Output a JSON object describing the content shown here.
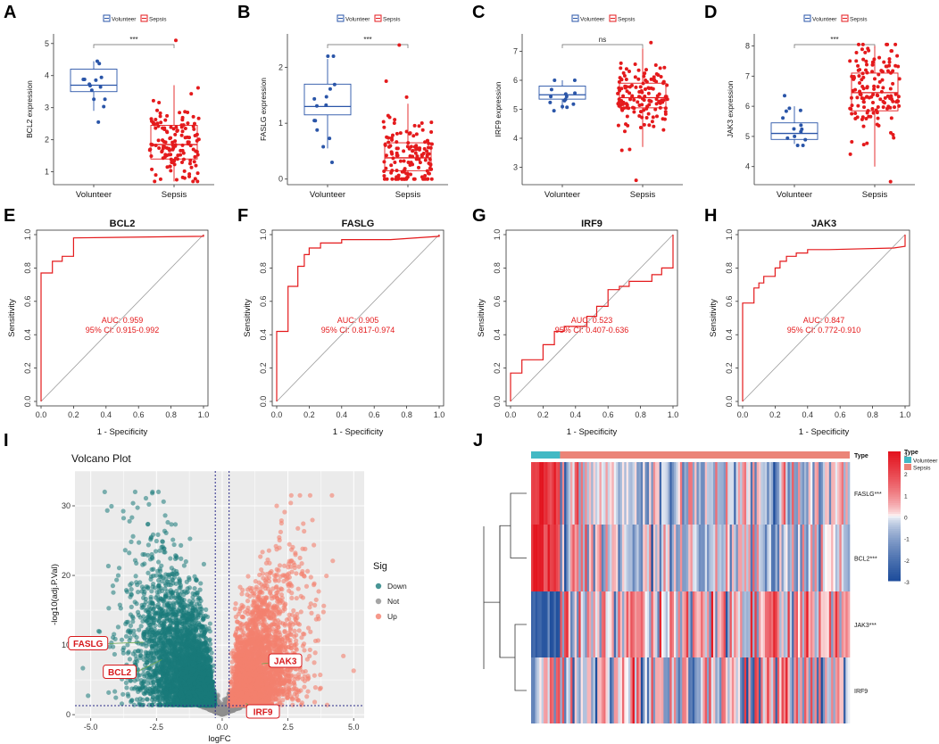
{
  "colors": {
    "volunteer": "#2a55a8",
    "sepsis": "#e41a1c",
    "roc": "#e41a1c",
    "down": "#1a7a7a",
    "not": "#8f8f8f",
    "up": "#f4806e",
    "heat_low": "#1f4e9c",
    "heat_mid": "#ffffff",
    "heat_high": "#e3141f",
    "type_volunteer": "#42b9c4",
    "type_sepsis": "#eb8478"
  },
  "chart_data": [
    {
      "panel": "A",
      "type": "box",
      "ylabel": "BCL2 expression",
      "categories": [
        "Volunteer",
        "Sepsis"
      ],
      "legend": [
        "Volunteer",
        "Sepsis"
      ],
      "ylim": [
        0.6,
        5.3
      ],
      "yticks": [
        1,
        2,
        3,
        4,
        5
      ],
      "yticklabels": [
        "1",
        "2",
        "3",
        "4",
        "5"
      ],
      "significance": "***",
      "boxes": [
        {
          "q1": 3.5,
          "median": 3.7,
          "q3": 4.2,
          "low": 2.9,
          "high": 4.45,
          "n": 14,
          "center": 3.75,
          "spread": 0.45,
          "min": 2.55,
          "max": 4.45
        },
        {
          "q1": 1.4,
          "median": 1.85,
          "q3": 2.45,
          "low": 0.7,
          "high": 3.7,
          "n": 140,
          "center": 1.9,
          "spread": 0.65,
          "min": 0.7,
          "max": 5.1
        }
      ]
    },
    {
      "panel": "B",
      "type": "box",
      "ylabel": "FASLG expression",
      "categories": [
        "Volunteer",
        "Sepsis"
      ],
      "legend": [
        "Volunteer",
        "Sepsis"
      ],
      "ylim": [
        -0.1,
        2.6
      ],
      "yticks": [
        0,
        1,
        2
      ],
      "yticklabels": [
        "0",
        "1",
        "2"
      ],
      "significance": "***",
      "boxes": [
        {
          "q1": 1.15,
          "median": 1.3,
          "q3": 1.7,
          "low": 0.55,
          "high": 2.15,
          "n": 14,
          "center": 1.35,
          "spread": 0.45,
          "min": 0.3,
          "max": 2.2
        },
        {
          "q1": 0.15,
          "median": 0.38,
          "q3": 0.65,
          "low": 0.0,
          "high": 1.35,
          "n": 140,
          "center": 0.42,
          "spread": 0.35,
          "min": 0.0,
          "max": 2.4
        }
      ]
    },
    {
      "panel": "C",
      "type": "box",
      "ylabel": "IRF9 expression",
      "categories": [
        "Volunteer",
        "Sepsis"
      ],
      "legend": [
        "Volunteer",
        "Sepsis"
      ],
      "ylim": [
        2.4,
        7.6
      ],
      "yticks": [
        3,
        4,
        5,
        6,
        7
      ],
      "yticklabels": [
        "3",
        "4",
        "5",
        "6",
        "7"
      ],
      "significance": "ns",
      "boxes": [
        {
          "q1": 5.35,
          "median": 5.5,
          "q3": 5.8,
          "low": 5.0,
          "high": 6.0,
          "n": 14,
          "center": 5.5,
          "spread": 0.3,
          "min": 4.95,
          "max": 6.0
        },
        {
          "q1": 5.05,
          "median": 5.4,
          "q3": 5.9,
          "low": 3.7,
          "high": 7.1,
          "n": 140,
          "center": 5.45,
          "spread": 0.55,
          "min": 2.55,
          "max": 7.3
        }
      ]
    },
    {
      "panel": "D",
      "type": "box",
      "ylabel": "JAK3 expression",
      "categories": [
        "Volunteer",
        "Sepsis"
      ],
      "legend": [
        "Volunteer",
        "Sepsis"
      ],
      "ylim": [
        3.4,
        8.4
      ],
      "yticks": [
        4,
        5,
        6,
        7,
        8
      ],
      "yticklabels": [
        "4",
        "5",
        "6",
        "7",
        "8"
      ],
      "significance": "***",
      "boxes": [
        {
          "q1": 4.9,
          "median": 5.1,
          "q3": 5.45,
          "low": 4.75,
          "high": 6.0,
          "n": 14,
          "center": 5.2,
          "spread": 0.45,
          "min": 4.7,
          "max": 6.35
        },
        {
          "q1": 5.85,
          "median": 6.45,
          "q3": 7.1,
          "low": 4.0,
          "high": 8.0,
          "n": 140,
          "center": 6.45,
          "spread": 0.9,
          "min": 3.5,
          "max": 8.05
        }
      ]
    },
    {
      "panel": "E",
      "type": "roc",
      "title": "BCL2",
      "xlabel": "1 - Specificity",
      "ylabel": "Sensitivity",
      "auc_text": "AUC: 0.959",
      "ci_text": "95% CI: 0.915-0.992",
      "ticks": [
        "0.0",
        "0.2",
        "0.4",
        "0.6",
        "0.8",
        "1.0"
      ],
      "curve": [
        [
          0,
          0
        ],
        [
          0,
          0.77
        ],
        [
          0.07,
          0.77
        ],
        [
          0.07,
          0.84
        ],
        [
          0.13,
          0.84
        ],
        [
          0.13,
          0.87
        ],
        [
          0.2,
          0.87
        ],
        [
          0.2,
          0.98
        ],
        [
          1,
          0.99
        ],
        [
          1,
          1
        ]
      ]
    },
    {
      "panel": "F",
      "type": "roc",
      "title": "FASLG",
      "xlabel": "1 - Specificity",
      "ylabel": "Sensitivity",
      "auc_text": "AUC: 0.905",
      "ci_text": "95% CI: 0.817-0.974",
      "ticks": [
        "0.0",
        "0.2",
        "0.4",
        "0.6",
        "0.8",
        "1.0"
      ],
      "curve": [
        [
          0,
          0
        ],
        [
          0,
          0.42
        ],
        [
          0.07,
          0.42
        ],
        [
          0.07,
          0.69
        ],
        [
          0.13,
          0.69
        ],
        [
          0.13,
          0.81
        ],
        [
          0.17,
          0.81
        ],
        [
          0.17,
          0.88
        ],
        [
          0.2,
          0.88
        ],
        [
          0.2,
          0.92
        ],
        [
          0.27,
          0.92
        ],
        [
          0.27,
          0.95
        ],
        [
          0.4,
          0.95
        ],
        [
          0.4,
          0.97
        ],
        [
          0.7,
          0.97
        ],
        [
          1,
          0.99
        ],
        [
          1,
          1
        ]
      ]
    },
    {
      "panel": "G",
      "type": "roc",
      "title": "IRF9",
      "xlabel": "1 - Specificity",
      "ylabel": "Sensitivity",
      "auc_text": "AUC: 0.523",
      "ci_text": "95% CI: 0.407-0.636",
      "ticks": [
        "0.0",
        "0.2",
        "0.4",
        "0.6",
        "0.8",
        "1.0"
      ],
      "curve": [
        [
          0,
          0
        ],
        [
          0,
          0.17
        ],
        [
          0.07,
          0.17
        ],
        [
          0.07,
          0.25
        ],
        [
          0.2,
          0.25
        ],
        [
          0.2,
          0.34
        ],
        [
          0.27,
          0.34
        ],
        [
          0.27,
          0.42
        ],
        [
          0.33,
          0.42
        ],
        [
          0.33,
          0.45
        ],
        [
          0.47,
          0.45
        ],
        [
          0.47,
          0.51
        ],
        [
          0.53,
          0.51
        ],
        [
          0.53,
          0.57
        ],
        [
          0.6,
          0.57
        ],
        [
          0.6,
          0.67
        ],
        [
          0.67,
          0.67
        ],
        [
          0.67,
          0.69
        ],
        [
          0.73,
          0.69
        ],
        [
          0.73,
          0.72
        ],
        [
          0.87,
          0.72
        ],
        [
          0.87,
          0.76
        ],
        [
          0.93,
          0.76
        ],
        [
          0.93,
          0.8
        ],
        [
          1,
          0.8
        ],
        [
          1,
          1
        ]
      ]
    },
    {
      "panel": "H",
      "type": "roc",
      "title": "JAK3",
      "xlabel": "1 - Specificity",
      "ylabel": "Sensitivity",
      "auc_text": "AUC: 0.847",
      "ci_text": "95% CI: 0.772-0.910",
      "ticks": [
        "0.0",
        "0.2",
        "0.4",
        "0.6",
        "0.8",
        "1.0"
      ],
      "curve": [
        [
          0,
          0
        ],
        [
          0,
          0.59
        ],
        [
          0.07,
          0.59
        ],
        [
          0.07,
          0.68
        ],
        [
          0.1,
          0.68
        ],
        [
          0.1,
          0.71
        ],
        [
          0.13,
          0.71
        ],
        [
          0.13,
          0.75
        ],
        [
          0.2,
          0.75
        ],
        [
          0.2,
          0.8
        ],
        [
          0.23,
          0.8
        ],
        [
          0.23,
          0.84
        ],
        [
          0.27,
          0.84
        ],
        [
          0.27,
          0.87
        ],
        [
          0.33,
          0.87
        ],
        [
          0.33,
          0.89
        ],
        [
          0.4,
          0.89
        ],
        [
          0.4,
          0.91
        ],
        [
          0.53,
          0.91
        ],
        [
          0.93,
          0.92
        ],
        [
          1,
          0.93
        ],
        [
          1,
          1
        ]
      ]
    },
    {
      "panel": "I",
      "type": "scatter",
      "title": "Volcano Plot",
      "xlabel": "logFC",
      "ylabel": "-log10(adj.P.Val)",
      "xlim": [
        -5.6,
        5.4
      ],
      "ylim": [
        -0.5,
        35
      ],
      "xticks": [
        -5,
        -2.5,
        0,
        2.5,
        5
      ],
      "xticklabels": [
        "-5.0",
        "-2.5",
        "0.0",
        "2.5",
        "5.0"
      ],
      "yticks": [
        0,
        10,
        20,
        30
      ],
      "yticklabels": [
        "0",
        "10",
        "20",
        "30"
      ],
      "fc_threshold": 0.263,
      "p_threshold": 1.3,
      "legend_title": "Sig",
      "legend": [
        "Down",
        "Not",
        "Up"
      ],
      "labels": [
        {
          "text": "FASLG",
          "x": -3.0,
          "y": 10.4,
          "lx": -5.1,
          "ly": 10.2
        },
        {
          "text": "BCL2",
          "x": -2.3,
          "y": 7.9,
          "lx": -3.9,
          "ly": 6.1
        },
        {
          "text": "JAK3",
          "x": 1.5,
          "y": 7.3,
          "lx": 2.4,
          "ly": 7.7
        },
        {
          "text": "IRF9",
          "x": 0.9,
          "y": 1.6,
          "lx": 1.55,
          "ly": 0.4
        }
      ]
    },
    {
      "panel": "J",
      "type": "heatmap",
      "rows": [
        "FASLG***",
        "BCL2***",
        "JAK3***",
        "IRF9"
      ],
      "type_label": "Type",
      "legend_title": "Type",
      "legend": [
        "Volunteer",
        "Sepsis"
      ],
      "n_volunteer": 14,
      "n_sepsis": 140,
      "colorbar_ticks": [
        "3",
        "2",
        "1",
        "0",
        "-1",
        "-2",
        "-3"
      ],
      "row_means": {
        "volunteer": [
          2.2,
          2.3,
          -2.4,
          0.0
        ],
        "sepsis": [
          -0.2,
          -0.2,
          0.3,
          0.0
        ]
      }
    }
  ]
}
